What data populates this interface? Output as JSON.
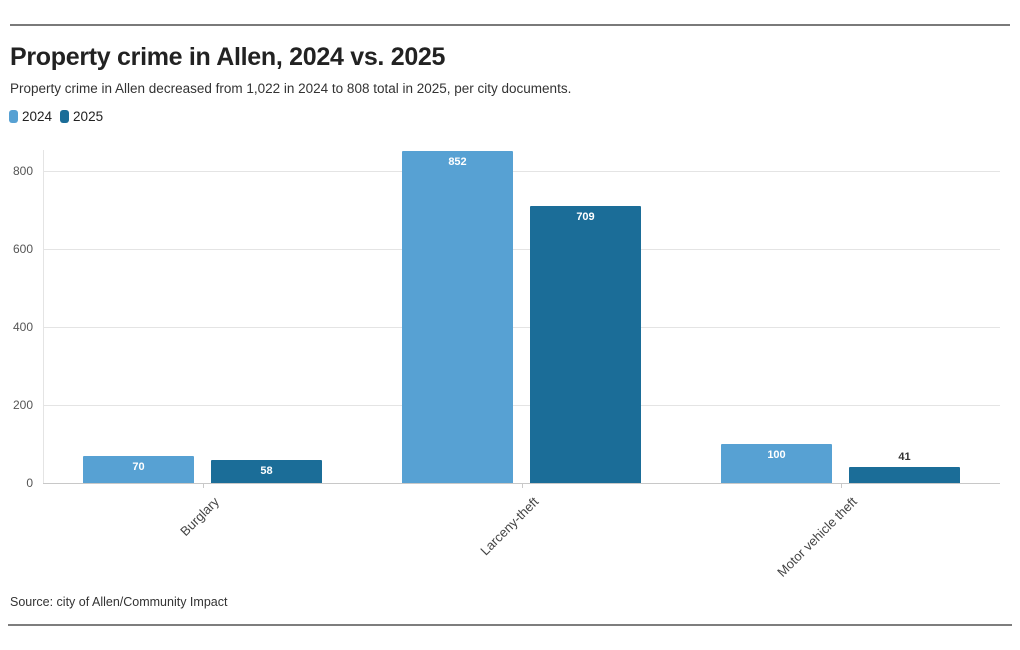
{
  "header": {
    "title": "Property crime in Allen, 2024 vs. 2025",
    "subtitle": "Property crime in Allen decreased from 1,022 in 2024 to 808 total in 2025, per city documents."
  },
  "chart_data": {
    "type": "bar",
    "title": "Property crime in Allen, 2024 vs. 2025",
    "subtitle": "Property crime in Allen decreased from 1,022 in 2024 to 808 total in 2025, per city documents.",
    "categories": [
      "Burglary",
      "Larceny-theft",
      "Motor vehicle theft"
    ],
    "series": [
      {
        "name": "2024",
        "color": "#57a1d3",
        "values": [
          70,
          852,
          100
        ]
      },
      {
        "name": "2025",
        "color": "#1b6d98",
        "values": [
          58,
          709,
          41
        ]
      }
    ],
    "yticks": [
      0,
      200,
      400,
      600,
      800
    ],
    "ylim": [
      0,
      870
    ],
    "grid": true,
    "legend_position": "top-left",
    "value_labels": true,
    "value_label_inside_color": "#ffffff",
    "value_label_outside_color": "#333333"
  },
  "footer": {
    "source": "Source: city of Allen/Community Impact"
  }
}
